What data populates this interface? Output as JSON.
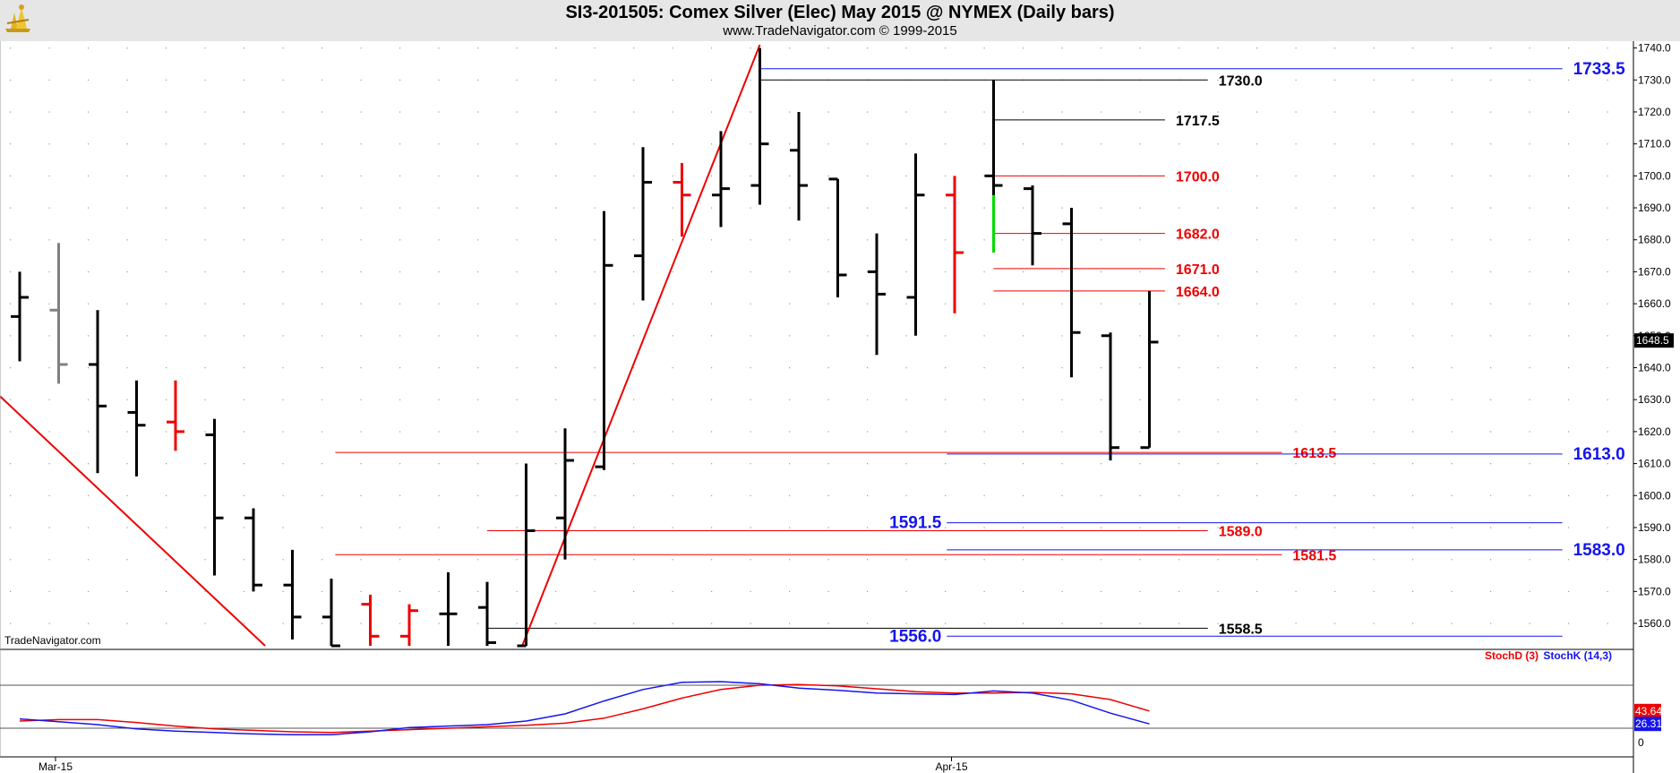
{
  "header": {
    "title": "SI3-201505:  Comex Silver (Elec) May 2015 @ NYMEX  (Daily bars)",
    "subtitle": "www.TradeNavigator.com © 1999-2015",
    "watermark": "TradeNavigator.com"
  },
  "colors": {
    "up_bar": "#000000",
    "down_bar": "#ee0000",
    "neutral_bar": "#808080",
    "green_bar": "#00dd00",
    "blue_level": "#1515ee",
    "red_level": "#ee0000",
    "black_level": "#000000",
    "trendline": "#ee0000",
    "stoch_d": "#ee0000",
    "stoch_k": "#1515ee"
  },
  "chart_data": [
    {
      "type": "ohlc",
      "price_axis": {
        "ylim": [
          1553,
          1741
        ],
        "ticks": [
          "1740.0",
          "1730.0",
          "1720.0",
          "1710.0",
          "1700.0",
          "1690.0",
          "1680.0",
          "1670.0",
          "1660.0",
          "1650.0",
          "1640.0",
          "1630.0",
          "1620.0",
          "1610.0",
          "1600.0",
          "1590.0",
          "1580.0",
          "1570.0",
          "1560.0"
        ],
        "last_price": "1648.5"
      },
      "x_axis": {
        "date_labels": [
          {
            "label": "Mar-15",
            "bar_index": 0
          },
          {
            "label": "Apr-15",
            "bar_index": 23
          }
        ]
      },
      "bars": [
        {
          "o": 1656,
          "h": 1670,
          "l": 1642,
          "c": 1662,
          "color": "black"
        },
        {
          "o": 1658,
          "h": 1679,
          "l": 1635,
          "c": 1641,
          "color": "gray"
        },
        {
          "o": 1641,
          "h": 1658,
          "l": 1607,
          "c": 1628,
          "color": "black"
        },
        {
          "o": 1626,
          "h": 1636,
          "l": 1606,
          "c": 1622,
          "color": "black"
        },
        {
          "o": 1623,
          "h": 1636,
          "l": 1614,
          "c": 1620,
          "color": "red"
        },
        {
          "o": 1619,
          "h": 1624,
          "l": 1575,
          "c": 1593,
          "color": "black"
        },
        {
          "o": 1593,
          "h": 1596,
          "l": 1570,
          "c": 1572,
          "color": "black"
        },
        {
          "o": 1572,
          "h": 1583,
          "l": 1555,
          "c": 1562,
          "color": "black"
        },
        {
          "o": 1562,
          "h": 1574,
          "l": 1553,
          "c": 1553,
          "color": "black"
        },
        {
          "o": 1566,
          "h": 1569,
          "l": 1553,
          "c": 1556,
          "color": "red"
        },
        {
          "o": 1556,
          "h": 1566,
          "l": 1553,
          "c": 1564,
          "color": "red"
        },
        {
          "o": 1563,
          "h": 1576,
          "l": 1553,
          "c": 1563,
          "color": "black"
        },
        {
          "o": 1565,
          "h": 1573,
          "l": 1553,
          "c": 1554,
          "color": "black"
        },
        {
          "o": 1553,
          "h": 1610,
          "l": 1553,
          "c": 1589,
          "color": "black"
        },
        {
          "o": 1593,
          "h": 1621,
          "l": 1580,
          "c": 1611,
          "color": "black"
        },
        {
          "o": 1609,
          "h": 1689,
          "l": 1608,
          "c": 1672,
          "color": "black"
        },
        {
          "o": 1675,
          "h": 1709,
          "l": 1661,
          "c": 1698,
          "color": "black"
        },
        {
          "o": 1698,
          "h": 1704,
          "l": 1681,
          "c": 1694,
          "color": "red"
        },
        {
          "o": 1694,
          "h": 1714,
          "l": 1684,
          "c": 1696,
          "color": "black"
        },
        {
          "o": 1697,
          "h": 1740,
          "l": 1691,
          "c": 1710,
          "color": "black"
        },
        {
          "o": 1708,
          "h": 1720,
          "l": 1686,
          "c": 1697,
          "color": "black"
        },
        {
          "o": 1699,
          "h": 1699,
          "l": 1662,
          "c": 1669,
          "color": "black"
        },
        {
          "o": 1670,
          "h": 1682,
          "l": 1644,
          "c": 1663,
          "color": "black"
        },
        {
          "o": 1662,
          "h": 1707,
          "l": 1650,
          "c": 1694,
          "color": "black"
        },
        {
          "o": 1694,
          "h": 1700,
          "l": 1657,
          "c": 1676,
          "color": "red"
        },
        {
          "o": 1700,
          "h": 1730,
          "l": 1676,
          "c": 1697,
          "color": "black"
        },
        {
          "o": 1696,
          "h": 1697,
          "l": 1672,
          "c": 1682,
          "color": "black"
        },
        {
          "o": 1685,
          "h": 1690,
          "l": 1637,
          "c": 1651,
          "color": "black"
        },
        {
          "o": 1650,
          "h": 1651,
          "l": 1611,
          "c": 1615,
          "color": "black"
        },
        {
          "o": 1615,
          "h": 1664,
          "l": 1615,
          "c": 1648,
          "color": "black"
        }
      ],
      "green_segment": {
        "bar_index": 25,
        "from": 1676,
        "to": 1694
      },
      "trendlines": [
        {
          "from": {
            "bar_index": -0.5,
            "price": 1631
          },
          "to": {
            "bar_index": 6.3,
            "price": 1553
          }
        },
        {
          "from": {
            "bar_index": 12.9,
            "price": 1553
          },
          "to": {
            "bar_index": 19,
            "price": 1741
          }
        }
      ],
      "levels": [
        {
          "value": 1733.5,
          "label": "1733.5",
          "color": "blue",
          "from_bar": 19,
          "to_bar": 39.6,
          "label_side": "right"
        },
        {
          "value": 1730.0,
          "label": "1730.0",
          "color": "black",
          "from_bar": 19,
          "to_bar": 30.5,
          "label_side": "right"
        },
        {
          "value": 1717.5,
          "label": "1717.5",
          "color": "black",
          "from_bar": 25,
          "to_bar": 29.4,
          "label_side": "right"
        },
        {
          "value": 1700.0,
          "label": "1700.0",
          "color": "red",
          "from_bar": 25,
          "to_bar": 29.4,
          "label_side": "right"
        },
        {
          "value": 1682.0,
          "label": "1682.0",
          "color": "red",
          "from_bar": 25,
          "to_bar": 29.4,
          "label_side": "right"
        },
        {
          "value": 1671.0,
          "label": "1671.0",
          "color": "red",
          "from_bar": 25,
          "to_bar": 29.4,
          "label_side": "right"
        },
        {
          "value": 1664.0,
          "label": "1664.0",
          "color": "red",
          "from_bar": 25,
          "to_bar": 29.4,
          "label_side": "right"
        },
        {
          "value": 1613.5,
          "label": "1613.5",
          "color": "red",
          "from_bar": 8.1,
          "to_bar": 32.4,
          "label_side": "right"
        },
        {
          "value": 1613.0,
          "label": "1613.0",
          "color": "blue",
          "from_bar": 23.8,
          "to_bar": 39.6,
          "label_side": "right"
        },
        {
          "value": 1591.5,
          "label": "1591.5",
          "color": "blue",
          "from_bar": 23.8,
          "to_bar": 39.6,
          "label_side": "left"
        },
        {
          "value": 1589.0,
          "label": "1589.0",
          "color": "red",
          "from_bar": 12,
          "to_bar": 30.5,
          "label_side": "right"
        },
        {
          "value": 1583.0,
          "label": "1583.0",
          "color": "blue",
          "from_bar": 23.8,
          "to_bar": 39.6,
          "label_side": "right"
        },
        {
          "value": 1581.5,
          "label": "1581.5",
          "color": "red",
          "from_bar": 8.1,
          "to_bar": 32.4,
          "label_side": "right"
        },
        {
          "value": 1558.5,
          "label": "1558.5",
          "color": "black",
          "from_bar": 12,
          "to_bar": 30.5,
          "label_side": "right"
        },
        {
          "value": 1556.0,
          "label": "1556.0",
          "color": "blue",
          "from_bar": 23.8,
          "to_bar": 39.6,
          "label_side": "left"
        }
      ]
    },
    {
      "type": "line",
      "title": "",
      "legend": [
        "StochD (3)",
        "StochK (14,3)"
      ],
      "ylim": [
        -5,
        105
      ],
      "ticks": [
        "0"
      ],
      "reference_lines": [
        20,
        80
      ],
      "series": [
        {
          "name": "StochD (3)",
          "color": "red",
          "last_label": "43.64",
          "values": [
            30,
            32,
            32,
            28,
            23,
            19,
            17,
            15,
            14,
            16,
            18,
            20,
            22,
            24,
            27,
            34,
            47,
            62,
            74,
            80,
            81,
            79,
            75,
            71,
            69,
            69,
            70,
            68,
            60,
            44
          ]
        },
        {
          "name": "StochK (14,3)",
          "color": "blue",
          "last_label": "26.31",
          "values": [
            33,
            29,
            25,
            19,
            16,
            14,
            12,
            11,
            11,
            15,
            21,
            23,
            25,
            30,
            40,
            58,
            74,
            84,
            85,
            82,
            76,
            73,
            69,
            68,
            67,
            72,
            69,
            59,
            41,
            26
          ]
        }
      ]
    }
  ]
}
